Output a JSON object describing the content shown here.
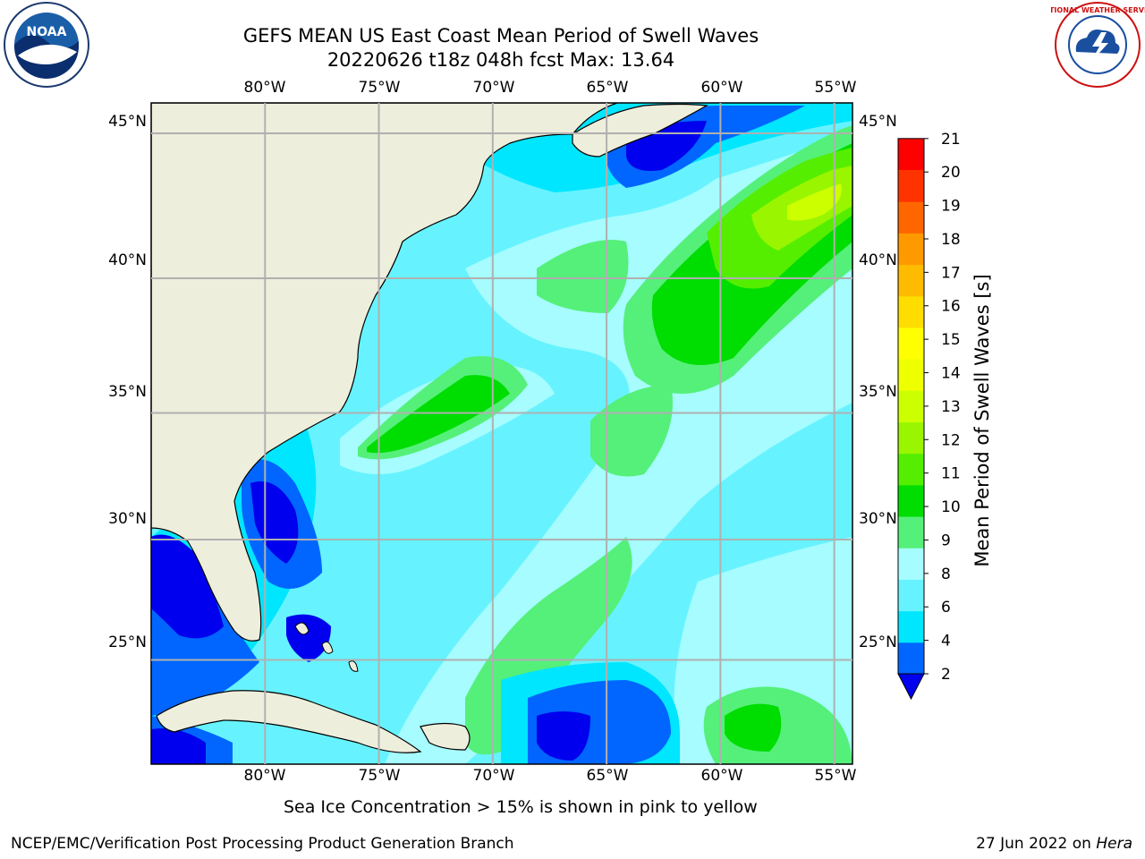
{
  "title": {
    "line1": "GEFS MEAN US East Coast Mean Period of Swell Waves",
    "line2": "20220626 t18z 048h fcst   Max: 13.64"
  },
  "map": {
    "lon_labels": [
      "80°W",
      "75°W",
      "70°W",
      "65°W",
      "60°W",
      "55°W"
    ],
    "lat_labels": [
      "45°N",
      "40°N",
      "35°N",
      "30°N",
      "25°N"
    ],
    "lon_values": [
      -80,
      -75,
      -70,
      -65,
      -60,
      -55
    ],
    "lat_values": [
      45,
      40,
      35,
      30,
      25
    ],
    "extent": {
      "lon_min": -85,
      "lon_max": -54.2,
      "lat_min": 20.5,
      "lat_max": 46
    },
    "land_color": "#eeeedc",
    "grid_color": "#b0b0b0"
  },
  "colorbar": {
    "label": "Mean Period of Swell Waves [s]",
    "ticks": [
      "2",
      "4",
      "6",
      "8",
      "9",
      "10",
      "11",
      "12",
      "13",
      "14",
      "15",
      "16",
      "17",
      "18",
      "19",
      "20",
      "21"
    ],
    "colors": [
      "#0066ff",
      "#00e6ff",
      "#66f3ff",
      "#a6fcff",
      "#55f07a",
      "#00dd00",
      "#55ee00",
      "#99f500",
      "#ccff00",
      "#eeff00",
      "#ffff00",
      "#ffdd00",
      "#ffbb00",
      "#ff9900",
      "#ff6600",
      "#ff3300",
      "#ff0000"
    ],
    "under_color": "#0000ee"
  },
  "footer": {
    "sea_ice_note": "Sea Ice Concentration > 15% is shown in pink to yellow",
    "left": "NCEP/EMC/Verification Post Processing Product Generation Branch",
    "right_date": "27 Jun 2022 on ",
    "right_machine": "Hera"
  },
  "logos": {
    "noaa_text": "NOAA",
    "nws_text": "NATIONAL WEATHER SERVICE"
  }
}
